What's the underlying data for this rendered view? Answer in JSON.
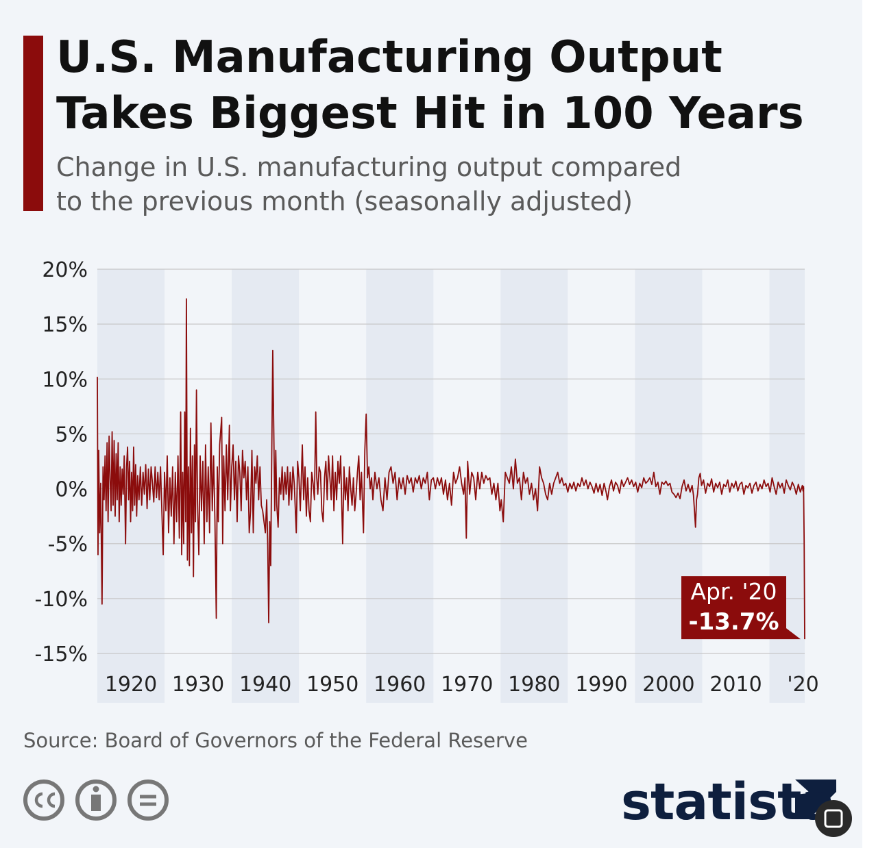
{
  "chart_data": {
    "type": "line",
    "title": [
      "U.S. Manufacturing Output",
      "Takes Biggest Hit in 100 Years"
    ],
    "subtitle": [
      "Change in U.S. manufacturing output compared",
      "to the previous month (seasonally adjusted)"
    ],
    "source": "Source: Board of Governors of the Federal Reserve",
    "brand": "statista",
    "xlim": [
      1915,
      2020.25
    ],
    "xticks": [
      1920,
      1930,
      1940,
      1950,
      1960,
      1970,
      1980,
      1990,
      2000,
      2010,
      {
        "value": 2020,
        "label": "'20"
      }
    ],
    "ylim": [
      -15,
      20
    ],
    "yticks": [
      {
        "value": 20,
        "label": "20%"
      },
      {
        "value": 15,
        "label": "15%"
      },
      {
        "value": 10,
        "label": "10%"
      },
      {
        "value": 5,
        "label": "5%"
      },
      {
        "value": 0,
        "label": "0%"
      },
      {
        "value": -5,
        "label": "-5%"
      },
      {
        "value": -10,
        "label": "-10%"
      },
      {
        "value": -15,
        "label": "-15%"
      }
    ],
    "grid": true,
    "annotation": {
      "x": 2020.25,
      "value": -13.7,
      "text": "Apr. '20",
      "label": "-13.7%"
    },
    "x": [
      1915.0,
      1915.1,
      1915.2,
      1915.35,
      1915.5,
      1915.7,
      1915.85,
      1916.0,
      1916.15,
      1916.3,
      1916.45,
      1916.6,
      1916.75,
      1916.9,
      1917.05,
      1917.2,
      1917.35,
      1917.5,
      1917.65,
      1917.8,
      1917.95,
      1918.1,
      1918.25,
      1918.4,
      1918.55,
      1918.7,
      1918.85,
      1919.0,
      1919.2,
      1919.35,
      1919.5,
      1919.65,
      1919.8,
      1919.95,
      1920.1,
      1920.25,
      1920.4,
      1920.55,
      1920.7,
      1920.85,
      1921.0,
      1921.2,
      1921.4,
      1921.6,
      1921.8,
      1922.0,
      1922.2,
      1922.4,
      1922.6,
      1922.8,
      1923.0,
      1923.2,
      1923.4,
      1923.6,
      1923.8,
      1924.0,
      1924.2,
      1924.4,
      1924.6,
      1924.8,
      1925.0,
      1925.2,
      1925.4,
      1925.6,
      1925.8,
      1926.0,
      1926.2,
      1926.4,
      1926.6,
      1926.8,
      1927.0,
      1927.2,
      1927.4,
      1927.55,
      1927.7,
      1927.85,
      1928.0,
      1928.15,
      1928.25,
      1928.4,
      1928.55,
      1928.7,
      1928.85,
      1929.0,
      1929.15,
      1929.3,
      1929.45,
      1929.6,
      1929.75,
      1929.9,
      1930.1,
      1930.3,
      1930.5,
      1930.7,
      1930.9,
      1931.1,
      1931.3,
      1931.5,
      1931.7,
      1931.9,
      1932.1,
      1932.3,
      1932.5,
      1932.7,
      1932.85,
      1933.0,
      1933.2,
      1933.5,
      1933.65,
      1933.8,
      1934.0,
      1934.2,
      1934.4,
      1934.65,
      1934.8,
      1935.0,
      1935.2,
      1935.4,
      1935.6,
      1935.8,
      1936.0,
      1936.2,
      1936.4,
      1936.6,
      1936.8,
      1937.0,
      1937.2,
      1937.4,
      1937.6,
      1937.8,
      1938.0,
      1938.2,
      1938.4,
      1938.6,
      1938.8,
      1939.0,
      1939.2,
      1939.4,
      1939.6,
      1939.8,
      1940.0,
      1940.2,
      1940.35,
      1940.5,
      1940.65,
      1940.8,
      1940.95,
      1941.1,
      1941.25,
      1941.4,
      1941.55,
      1941.7,
      1941.9,
      1942.1,
      1942.3,
      1942.5,
      1942.7,
      1942.9,
      1943.1,
      1943.3,
      1943.5,
      1943.7,
      1943.9,
      1944.1,
      1944.3,
      1944.6,
      1944.8,
      1945.0,
      1945.2,
      1945.5,
      1945.7,
      1945.9,
      1946.1,
      1946.3,
      1946.5,
      1946.7,
      1946.9,
      1947.1,
      1947.3,
      1947.5,
      1947.65,
      1947.8,
      1948.0,
      1948.2,
      1948.4,
      1948.6,
      1948.8,
      1949.0,
      1949.2,
      1949.4,
      1949.6,
      1949.8,
      1950.0,
      1950.2,
      1950.4,
      1950.6,
      1950.8,
      1951.0,
      1951.2,
      1951.5,
      1951.7,
      1951.9,
      1952.1,
      1952.3,
      1952.5,
      1952.7,
      1952.9,
      1953.1,
      1953.3,
      1953.5,
      1953.7,
      1953.9,
      1954.1,
      1954.3,
      1954.6,
      1954.8,
      1955.0,
      1955.2,
      1955.4,
      1955.6,
      1955.8,
      1956.0,
      1956.3,
      1956.6,
      1956.9,
      1957.2,
      1957.5,
      1957.8,
      1958.1,
      1958.4,
      1958.7,
      1959.0,
      1959.3,
      1959.6,
      1959.9,
      1960.2,
      1960.5,
      1960.8,
      1961.1,
      1961.4,
      1961.7,
      1962.0,
      1962.3,
      1962.6,
      1962.9,
      1963.2,
      1963.5,
      1963.8,
      1964.1,
      1964.4,
      1964.7,
      1965.0,
      1965.3,
      1965.6,
      1965.9,
      1966.2,
      1966.5,
      1966.8,
      1967.1,
      1967.4,
      1967.7,
      1968.0,
      1968.3,
      1968.6,
      1968.9,
      1969.2,
      1969.5,
      1969.7,
      1969.9,
      1970.1,
      1970.4,
      1970.7,
      1971.0,
      1971.3,
      1971.6,
      1971.9,
      1972.2,
      1972.5,
      1972.8,
      1973.1,
      1973.4,
      1973.7,
      1974.0,
      1974.3,
      1974.6,
      1974.9,
      1975.1,
      1975.4,
      1975.7,
      1976.0,
      1976.3,
      1976.6,
      1976.9,
      1977.2,
      1977.5,
      1977.8,
      1978.1,
      1978.4,
      1978.7,
      1979.0,
      1979.3,
      1979.6,
      1979.9,
      1980.2,
      1980.5,
      1980.8,
      1981.1,
      1981.4,
      1981.7,
      1982.0,
      1982.3,
      1982.6,
      1982.9,
      1983.2,
      1983.5,
      1983.8,
      1984.1,
      1984.4,
      1984.7,
      1985.0,
      1985.3,
      1985.6,
      1985.9,
      1986.2,
      1986.5,
      1986.8,
      1987.1,
      1987.4,
      1987.7,
      1988.0,
      1988.3,
      1988.6,
      1988.9,
      1989.2,
      1989.5,
      1989.8,
      1990.1,
      1990.4,
      1990.7,
      1990.9,
      1991.2,
      1991.5,
      1991.8,
      1992.1,
      1992.4,
      1992.7,
      1993.0,
      1993.3,
      1993.6,
      1993.9,
      1994.2,
      1994.5,
      1994.8,
      1995.1,
      1995.4,
      1995.7,
      1996.0,
      1996.3,
      1996.6,
      1996.9,
      1997.2,
      1997.5,
      1997.8,
      1998.1,
      1998.4,
      1998.7,
      1999.0,
      1999.3,
      1999.6,
      1999.9,
      2000.2,
      2000.5,
      2000.8,
      2001.1,
      2001.4,
      2001.7,
      2002.0,
      2002.3,
      2002.6,
      2002.9,
      2003.2,
      2003.5,
      2003.7,
      2003.85,
      2004.0,
      2004.15,
      2004.3,
      2004.5,
      2004.7,
      2004.9,
      2005.2,
      2005.5,
      2005.8,
      2006.1,
      2006.4,
      2006.7,
      2007.0,
      2007.3,
      2007.6,
      2007.9,
      2008.2,
      2008.5,
      2008.8,
      2009.1,
      2009.4,
      2009.7,
      2010.0,
      2010.3,
      2010.6,
      2010.9,
      2011.2,
      2011.5,
      2011.8,
      2012.1,
      2012.4,
      2012.7,
      2013.0,
      2013.3,
      2013.6,
      2013.9,
      2014.2,
      2014.5,
      2014.8,
      2015.1,
      2015.4,
      2015.7,
      2016.0,
      2016.3,
      2016.6,
      2016.9,
      2017.2,
      2017.5,
      2017.8,
      2018.1,
      2018.4,
      2018.7,
      2019.0,
      2019.3,
      2019.6,
      2019.9,
      2020.0,
      2020.08,
      2020.17,
      2020.25
    ],
    "series": [
      {
        "color": "#8b0c0c",
        "values": [
          10.2,
          -6,
          3.5,
          -4,
          0.5,
          -10.5,
          2,
          -1,
          3,
          -2,
          4.2,
          -3,
          4.8,
          1,
          -2,
          5.2,
          -1.5,
          4.4,
          -2.5,
          3.2,
          -1,
          4.2,
          -3,
          2,
          -1.5,
          1.8,
          -0.5,
          3,
          -5,
          2,
          3.8,
          -1,
          2.5,
          -3,
          1.5,
          -2,
          3.8,
          -1.5,
          2.2,
          -2.5,
          1.2,
          -1,
          2,
          -1.5,
          1.5,
          -0.5,
          2.2,
          -1.8,
          1.8,
          -1,
          2,
          0.5,
          -1.2,
          2,
          -0.8,
          1.5,
          -1,
          2,
          -2,
          -6,
          1.5,
          -2,
          3,
          -4,
          1,
          -2.5,
          2,
          -5,
          1.5,
          -3,
          3,
          -4.5,
          7,
          -6,
          1.5,
          -5,
          7,
          -3,
          17.3,
          -6.5,
          2,
          -7,
          5.5,
          -4,
          3,
          -8,
          4,
          -3,
          9,
          -1,
          -6,
          3,
          -2,
          2.5,
          -5,
          4,
          -3,
          2,
          -4,
          6,
          -2,
          3,
          -3,
          -11.8,
          2,
          -3,
          4,
          6.5,
          -5,
          3,
          -2,
          4,
          -1,
          5.8,
          -2,
          2,
          4,
          -1,
          2.5,
          -3,
          3,
          1.5,
          -2,
          3.5,
          1,
          2.5,
          -1,
          2,
          -4,
          -2,
          3.5,
          -4,
          2,
          0.5,
          3,
          -1,
          2,
          -1.5,
          -2,
          -3,
          -4,
          -1,
          -5,
          -12.2,
          -3,
          -7,
          3,
          12.6,
          5.5,
          -2,
          3.5,
          -1.5,
          -3.5,
          1,
          -0.5,
          2,
          -1,
          1.5,
          -0.5,
          2,
          -1.5,
          1.5,
          -1,
          2,
          0.5,
          -4,
          2.5,
          1,
          -2,
          4,
          -1,
          2,
          -2.5,
          1,
          -2,
          -3,
          1.5,
          0.5,
          -1,
          7,
          1,
          -0.5,
          2,
          1.5,
          -2,
          -3,
          1,
          2.5,
          -1,
          3,
          1,
          -1,
          3,
          -2,
          1.5,
          -1,
          2.5,
          0.5,
          3,
          -5,
          2,
          -1,
          1,
          -2,
          2,
          0,
          -1.5,
          1,
          -2,
          -0.5,
          1.5,
          3,
          -1,
          1.5,
          -4,
          3.5,
          6.8,
          1,
          2,
          0,
          1,
          -1,
          1.5,
          0,
          1,
          -1,
          -2,
          1,
          -1,
          1.5,
          2,
          0.5,
          1.5,
          -1,
          1,
          0,
          1,
          -0.5,
          1.2,
          0.5,
          1,
          -0.3,
          1,
          0.5,
          1.2,
          0,
          1,
          0.5,
          1.5,
          -1,
          0.8,
          1,
          0,
          1,
          0.3,
          1,
          -0.5,
          0.8,
          -1,
          0.5,
          -1.5,
          1.5,
          0.5,
          1,
          2,
          0.5,
          -0.5,
          1,
          -4.5,
          2.5,
          -0.5,
          1.5,
          1,
          -1,
          1.5,
          0,
          1.5,
          0.5,
          1.2,
          0.8,
          1,
          -0.5,
          0.5,
          -1,
          0.5,
          -2,
          -1,
          -3,
          1.5,
          1,
          0.5,
          2,
          0,
          2.7,
          0.5,
          1,
          -1,
          1.5,
          0.5,
          1,
          -0.5,
          0.5,
          -1,
          0,
          -2,
          2,
          1,
          0.5,
          -0.5,
          -1,
          0.5,
          -0.5,
          0.5,
          1,
          1.5,
          0.5,
          1,
          0.3,
          0.5,
          -0.3,
          0.5,
          0,
          0.6,
          -0.2,
          0.5,
          0.2,
          1,
          0.3,
          0.8,
          0,
          0.6,
          0.2,
          -0.4,
          0.5,
          -0.3,
          0.4,
          -0.6,
          0.5,
          -0.3,
          -1,
          0.2,
          0.8,
          -0.2,
          0.6,
          0.3,
          -0.4,
          0.8,
          0.2,
          0.6,
          1,
          0.4,
          0.8,
          0.2,
          0.6,
          -0.3,
          0.5,
          0.1,
          1,
          0.5,
          0.7,
          1,
          0.4,
          1.5,
          0.2,
          0.6,
          -0.5,
          0.6,
          0.4,
          0.7,
          0.3,
          0.5,
          -0.3,
          -0.5,
          -0.8,
          -0.4,
          -0.9,
          0.2,
          0.8,
          -0.2,
          0.4,
          -0.3,
          0.3,
          -0.6,
          -2,
          -3.5,
          -1,
          -0.5,
          1,
          1.4,
          0.3,
          0.8,
          -0.4,
          0.5,
          0.2,
          0.9,
          -0.3,
          0.5,
          0.1,
          0.6,
          -0.5,
          0.4,
          0.2,
          0.8,
          -0.3,
          0.5,
          0.1,
          0.7,
          -0.2,
          0.4,
          0.6,
          -0.5,
          0.3,
          0.1,
          0.5,
          -0.4,
          0.3,
          0.6,
          -0.2,
          0.4,
          0,
          0.8,
          0.2,
          0.5,
          -0.3,
          1,
          0.2,
          -0.5,
          0.6,
          0.1,
          0.5,
          -0.4,
          0.8,
          0.3,
          -0.1,
          0.6,
          0.2,
          -0.5,
          0.4,
          -0.3,
          0.3,
          -0.2,
          0.2,
          -5,
          -13.7
        ]
      }
    ]
  }
}
